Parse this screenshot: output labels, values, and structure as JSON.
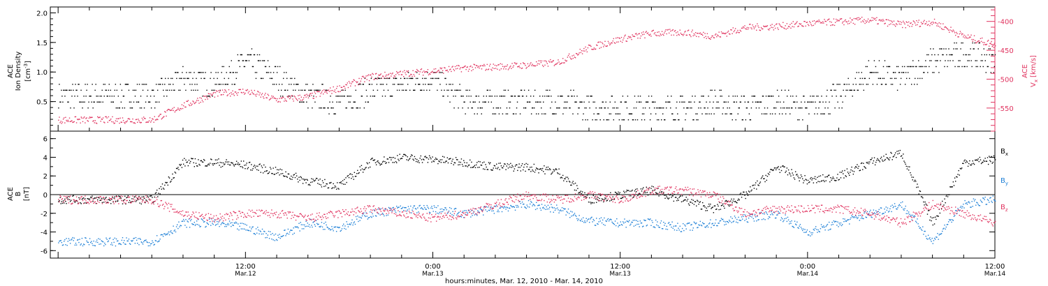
{
  "chart_data": [
    {
      "type": "scatter",
      "ylabel_left": {
        "line1": "ACE",
        "line2": "Ion Density",
        "unit": "[cm",
        "unit_sup": "-3",
        "unit_close": "]"
      },
      "ylabel_right": {
        "line1": "ACE",
        "var": "V",
        "var_sub": "x",
        "unit": "[km/s]"
      },
      "ylim_left": [
        0.0,
        2.1
      ],
      "ylim_right": [
        -590,
        -375
      ],
      "yticks_left": [
        "0.5",
        "1.0",
        "1.5",
        "2.0"
      ],
      "yticks_right": [
        "-400",
        "-450",
        "-500",
        "-550"
      ],
      "colors": {
        "density": "#000000",
        "vx": "#e0335f"
      },
      "series": [
        {
          "key": "density",
          "x_hours": [
            0,
            2,
            4,
            6,
            8,
            10,
            12,
            14,
            16,
            18,
            20,
            22,
            24,
            26,
            28,
            30,
            32,
            34,
            36,
            38,
            40,
            42,
            44,
            46,
            48,
            50,
            52,
            54
          ],
          "values": [
            0.6,
            0.9,
            0.8,
            1.2,
            0.9,
            0.6,
            0.5,
            0.7,
            0.8,
            0.9,
            0.5,
            0.5,
            0.5,
            0.5,
            0.4,
            0.4,
            0.4,
            0.4,
            0.5,
            0.4,
            0.5,
            0.4,
            0.6,
            1.0,
            0.9,
            1.2,
            1.3,
            1.2
          ]
        },
        {
          "key": "vx",
          "x_hours": [
            0,
            2,
            4,
            6,
            8,
            10,
            12,
            14,
            16,
            18,
            20,
            22,
            24,
            26,
            28,
            30,
            32,
            34,
            36,
            38,
            40,
            42,
            44,
            46,
            48,
            50,
            52,
            54
          ],
          "values": [
            -570,
            -545,
            -525,
            -520,
            -535,
            -530,
            -515,
            -495,
            -490,
            -485,
            -480,
            -478,
            -475,
            -470,
            -445,
            -430,
            -420,
            -418,
            -425,
            -410,
            -408,
            -403,
            -400,
            -397,
            -405,
            -400,
            -425,
            -440
          ]
        }
      ]
    },
    {
      "type": "scatter",
      "ylabel": {
        "line1": "ACE",
        "var": "B",
        "unit": "[nT]"
      },
      "ylim": [
        -6.8,
        6.8
      ],
      "yticks": [
        "6",
        "4",
        "2",
        "0",
        "-2",
        "-4",
        "-6"
      ],
      "legend": [
        {
          "key": "bx",
          "label": "B",
          "sub": "x",
          "color": "#000000"
        },
        {
          "key": "by",
          "label": "B",
          "sub": "y",
          "color": "#1c7fd6"
        },
        {
          "key": "bz",
          "label": "B",
          "sub": "z",
          "color": "#e0335f"
        }
      ],
      "series": [
        {
          "key": "bx",
          "x_hours": [
            0,
            2,
            4,
            6,
            8,
            10,
            12,
            14,
            16,
            18,
            20,
            22,
            24,
            26,
            28,
            30,
            32,
            34,
            36,
            38,
            40,
            42,
            44,
            46,
            48,
            50,
            52,
            54
          ],
          "values": [
            -0.5,
            3.5,
            3.5,
            3.2,
            2.5,
            1.5,
            1.0,
            3.5,
            4.0,
            3.8,
            3.5,
            3.0,
            3.0,
            2.5,
            -0.5,
            0.0,
            0.5,
            -0.5,
            -1.5,
            0.0,
            3.0,
            1.5,
            2.0,
            3.5,
            4.5,
            -3.0,
            3.5,
            3.8
          ]
        },
        {
          "key": "by",
          "x_hours": [
            0,
            2,
            4,
            6,
            8,
            10,
            12,
            14,
            16,
            18,
            20,
            22,
            24,
            26,
            28,
            30,
            32,
            34,
            36,
            38,
            40,
            42,
            44,
            46,
            48,
            50,
            52,
            54
          ],
          "values": [
            -5.0,
            -3.0,
            -3.0,
            -3.5,
            -4.5,
            -3.0,
            -3.5,
            -2.0,
            -1.5,
            -1.5,
            -2.0,
            -1.5,
            -1.0,
            -1.5,
            -2.8,
            -3.0,
            -3.0,
            -3.5,
            -3.0,
            -2.5,
            -2.0,
            -4.0,
            -3.0,
            -2.0,
            -1.0,
            -5.0,
            -1.0,
            -0.5
          ]
        },
        {
          "key": "bz",
          "x_hours": [
            0,
            2,
            4,
            6,
            8,
            10,
            12,
            14,
            16,
            18,
            20,
            22,
            24,
            26,
            28,
            30,
            32,
            34,
            36,
            38,
            40,
            42,
            44,
            46,
            48,
            50,
            52,
            54
          ],
          "values": [
            -0.5,
            -2.0,
            -2.5,
            -2.0,
            -2.0,
            -2.5,
            -2.0,
            -1.5,
            -2.0,
            -2.5,
            -2.0,
            -1.0,
            0.0,
            -0.5,
            0.0,
            -0.5,
            0.5,
            0.5,
            0.0,
            -2.0,
            -1.5,
            -1.5,
            -1.5,
            -2.0,
            -3.0,
            -1.0,
            -2.0,
            -3.0
          ]
        }
      ]
    }
  ],
  "x_axis": {
    "ticks": [
      {
        "hours": 6,
        "time": "12:00",
        "date": "Mar.12"
      },
      {
        "hours": 18,
        "time": "0:00",
        "date": "Mar.13"
      },
      {
        "hours": 30,
        "time": "12:00",
        "date": "Mar.13"
      },
      {
        "hours": 42,
        "time": "0:00",
        "date": "Mar.14"
      },
      {
        "hours": 54,
        "time": "12:00",
        "date": "Mar.14"
      }
    ],
    "range_hours": [
      -6.5,
      54
    ],
    "xlabel": "hours:minutes, Mar. 12, 2010 - Mar. 14, 2010"
  }
}
